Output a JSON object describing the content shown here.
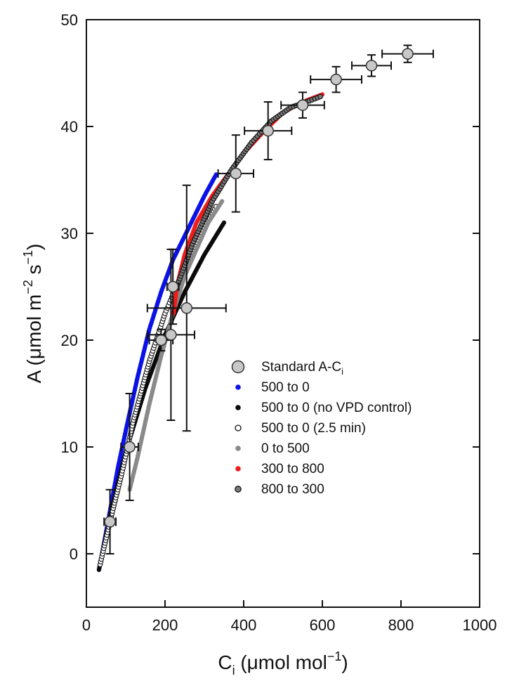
{
  "chart_data": {
    "type": "scatter",
    "xlabel": {
      "base": "C",
      "sub": "i",
      "rest": " (μmol mol",
      "sup": "−1",
      "end": ")"
    },
    "ylabel": {
      "base": "A (μmol m",
      "sup1": "−2",
      "mid": " s",
      "sup2": "−1",
      "end": ")"
    },
    "xlim": [
      0,
      1000
    ],
    "ylim": [
      -5,
      50
    ],
    "xticks": [
      0,
      200,
      400,
      600,
      800,
      1000
    ],
    "yticks": [
      0,
      10,
      20,
      30,
      40,
      50
    ],
    "grid": false,
    "legend_position": "center-right",
    "standard": {
      "name": "Standard A-C",
      "name_sub": "i",
      "color": "#c8c8c8",
      "edge": "#333333",
      "points": [
        {
          "x": 60,
          "y": 3,
          "xerr": 15,
          "yerr": 3
        },
        {
          "x": 110,
          "y": 10,
          "xerr": 22,
          "yerr": 5
        },
        {
          "x": 190,
          "y": 20,
          "xerr": 30,
          "yerr": 1
        },
        {
          "x": 215,
          "y": 20.5,
          "xerr": 60,
          "yerr": 8
        },
        {
          "x": 220,
          "y": 25,
          "xerr": 15,
          "yerr": 3.5
        },
        {
          "x": 255,
          "y": 23,
          "xerr": 100,
          "yerr": 11.5
        },
        {
          "x": 380,
          "y": 35.6,
          "xerr": 45,
          "yerr": 3.6
        },
        {
          "x": 462,
          "y": 39.6,
          "xerr": 60,
          "yerr": 2.7
        },
        {
          "x": 550,
          "y": 42,
          "xerr": 55,
          "yerr": 1.2
        },
        {
          "x": 635,
          "y": 44.4,
          "xerr": 65,
          "yerr": 1.2
        },
        {
          "x": 725,
          "y": 45.7,
          "xerr": 50,
          "yerr": 1
        },
        {
          "x": 817,
          "y": 46.8,
          "xerr": 65,
          "yerr": 0.8
        }
      ]
    },
    "series": [
      {
        "name": "500 to 0",
        "style": "filled",
        "color": "#0a12e6",
        "curve": [
          [
            32,
            -1.5
          ],
          [
            45,
            1
          ],
          [
            60,
            4
          ],
          [
            80,
            8
          ],
          [
            100,
            11.5
          ],
          [
            130,
            16.5
          ],
          [
            160,
            21
          ],
          [
            190,
            24.5
          ],
          [
            220,
            27.5
          ],
          [
            260,
            30.5
          ],
          [
            300,
            33.5
          ],
          [
            330,
            35.5
          ]
        ]
      },
      {
        "name": "500 to 0 (no VPD control)",
        "style": "filled",
        "color": "#0a0a0a",
        "curve": [
          [
            32,
            -1.5
          ],
          [
            60,
            3.5
          ],
          [
            100,
            9.5
          ],
          [
            150,
            15.5
          ],
          [
            200,
            20.5
          ],
          [
            250,
            24.5
          ],
          [
            300,
            28
          ],
          [
            350,
            31
          ]
        ]
      },
      {
        "name": "500 to 0 (2.5 min)",
        "style": "open",
        "color": "#ffffff",
        "curve": [
          [
            35,
            -1
          ],
          [
            60,
            3
          ],
          [
            90,
            7.5
          ],
          [
            120,
            12.5
          ],
          [
            160,
            18
          ],
          [
            200,
            22.5
          ],
          [
            240,
            26
          ],
          [
            270,
            28.5
          ],
          [
            300,
            30.5
          ],
          [
            330,
            32.5
          ]
        ]
      },
      {
        "name": "0 to 500",
        "style": "filled",
        "color": "#8a8a8a",
        "curve": [
          [
            110,
            6
          ],
          [
            130,
            9
          ],
          [
            160,
            14
          ],
          [
            190,
            18.5
          ],
          [
            220,
            22.5
          ],
          [
            250,
            26
          ],
          [
            280,
            28.5
          ],
          [
            310,
            31
          ],
          [
            345,
            33
          ]
        ]
      },
      {
        "name": "300 to 800",
        "style": "filled",
        "color": "#ee1d1d",
        "curve": [
          [
            222,
            22.5
          ],
          [
            230,
            25
          ],
          [
            250,
            28
          ],
          [
            280,
            31
          ],
          [
            320,
            33.5
          ],
          [
            360,
            35.5
          ],
          [
            400,
            37.5
          ],
          [
            450,
            39.5
          ],
          [
            500,
            41.3
          ],
          [
            550,
            42.3
          ],
          [
            600,
            43
          ]
        ]
      },
      {
        "name": "800 to 300",
        "style": "dotted",
        "color": "#606060",
        "curve": [
          [
            230,
            25
          ],
          [
            270,
            29
          ],
          [
            320,
            33
          ],
          [
            370,
            36
          ],
          [
            420,
            38.5
          ],
          [
            470,
            40.5
          ],
          [
            520,
            41.8
          ],
          [
            560,
            42.3
          ],
          [
            595,
            42.8
          ]
        ]
      }
    ]
  }
}
